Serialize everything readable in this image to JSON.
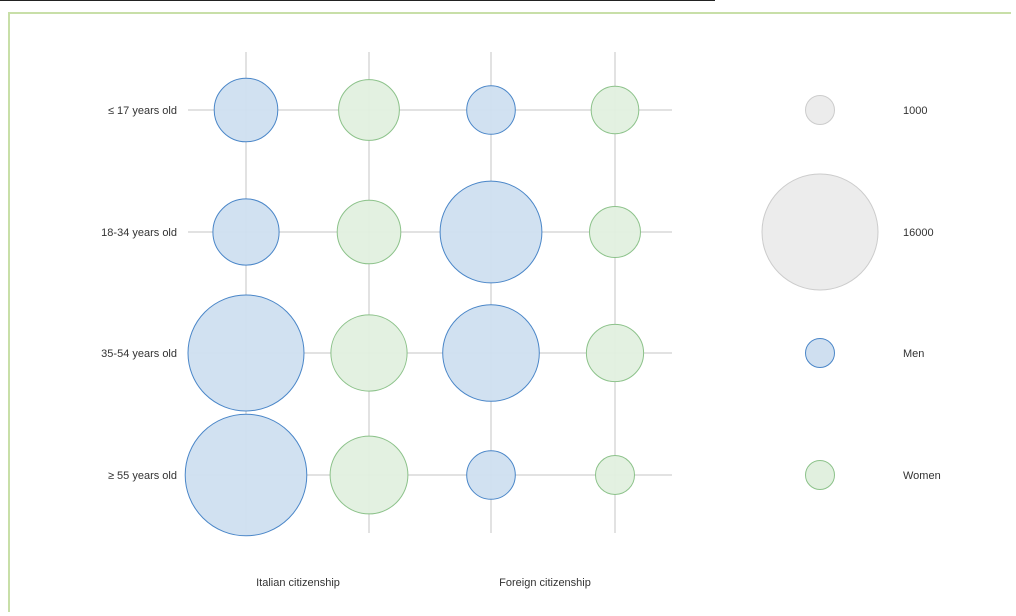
{
  "chart_data": {
    "type": "bubble-matrix",
    "rows": [
      "≤ 17 years old",
      "18-34 years old",
      "35-54 years old",
      "≥ 55 years old"
    ],
    "groups": [
      "Italian citizenship",
      "Foreign citizenship"
    ],
    "series": [
      {
        "name": "Men",
        "color": "#4a86c8",
        "fill": "#cfdff0"
      },
      {
        "name": "Women",
        "color": "#8cc28a",
        "fill": "#e1f0df"
      }
    ],
    "values": {
      "Italian citizenship": {
        "Men": [
          4800,
          5200,
          16000,
          17600
        ],
        "Women": [
          4400,
          4800,
          6900,
          7200
        ]
      },
      "Foreign citizenship": {
        "Men": [
          2800,
          12300,
          11100,
          2800
        ],
        "Women": [
          2700,
          3100,
          3900,
          1800
        ]
      }
    },
    "size_legend": [
      {
        "label": "1000",
        "value": 1000
      },
      {
        "label": "16000",
        "value": 16000
      }
    ],
    "color_legend": [
      {
        "label": "Men",
        "color": "#4a86c8",
        "fill": "#cfdff0"
      },
      {
        "label": "Women",
        "color": "#8cc28a",
        "fill": "#e1f0df"
      }
    ],
    "legend_neutral": {
      "color": "#cccccc",
      "fill": "#ececec"
    },
    "grid": true
  }
}
